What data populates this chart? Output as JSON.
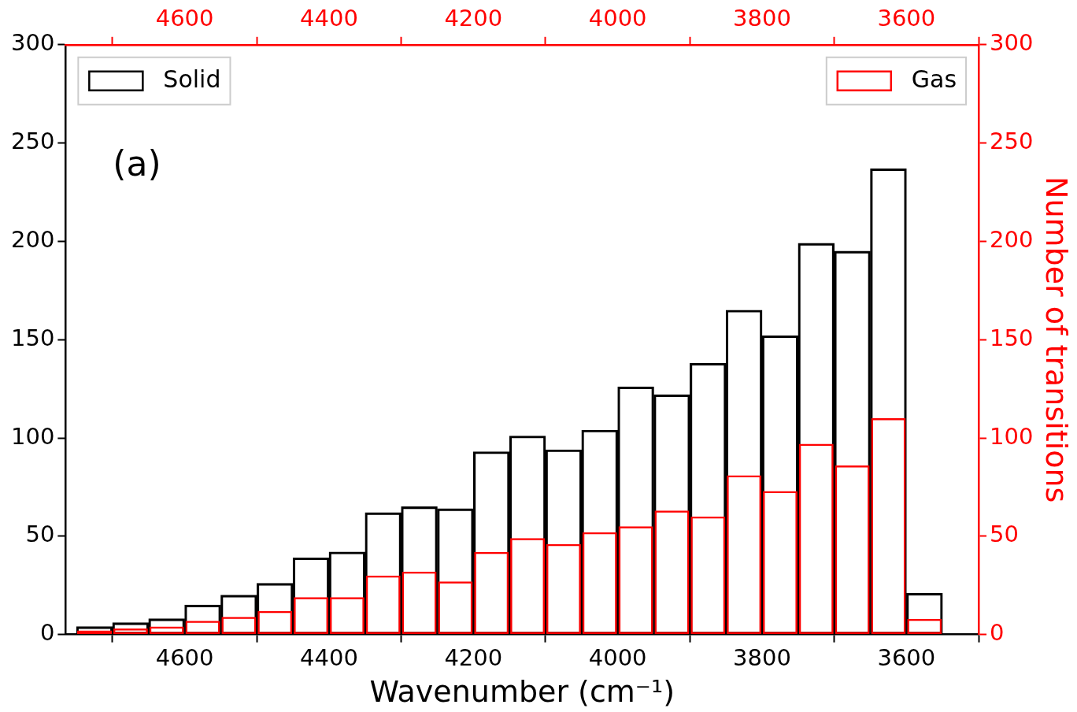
{
  "chart_data": {
    "type": "bar",
    "xlabel": "Wavenumber (cm⁻¹)",
    "y2label": "Number of transitions",
    "x": [
      3575,
      3625,
      3675,
      3725,
      3775,
      3825,
      3875,
      3925,
      3975,
      4025,
      4075,
      4125,
      4175,
      4225,
      4275,
      4325,
      4375,
      4425,
      4475,
      4525,
      4575,
      4625,
      4675,
      4725
    ],
    "series": [
      {
        "name": "Solid",
        "color": "#000000",
        "values": [
          21,
          237,
          195,
          199,
          152,
          165,
          138,
          122,
          126,
          104,
          94,
          101,
          93,
          64,
          65,
          62,
          42,
          39,
          26,
          20,
          15,
          8,
          6,
          4
        ]
      },
      {
        "name": "Gas",
        "color": "#ff0000",
        "axis": "y2",
        "values": [
          8,
          110,
          86,
          97,
          73,
          81,
          60,
          63,
          55,
          52,
          46,
          49,
          42,
          27,
          32,
          30,
          19,
          19,
          12,
          9,
          7,
          4,
          3,
          2
        ]
      }
    ],
    "xlim": [
      4765,
      3500
    ],
    "xticks": [
      4600,
      4400,
      4200,
      4000,
      3800,
      3600
    ],
    "x2lim": [
      4765,
      3500
    ],
    "x2ticks": [
      4600,
      4400,
      4200,
      4000,
      3800,
      3600
    ],
    "ylim": [
      0,
      300
    ],
    "yticks": [
      0,
      50,
      100,
      150,
      200,
      250,
      300
    ],
    "y2lim": [
      0,
      300
    ],
    "y2ticks": [
      0,
      50,
      100,
      150,
      200,
      250,
      300
    ],
    "annotations": [
      "(a)"
    ],
    "legend": "top",
    "grid": false
  }
}
